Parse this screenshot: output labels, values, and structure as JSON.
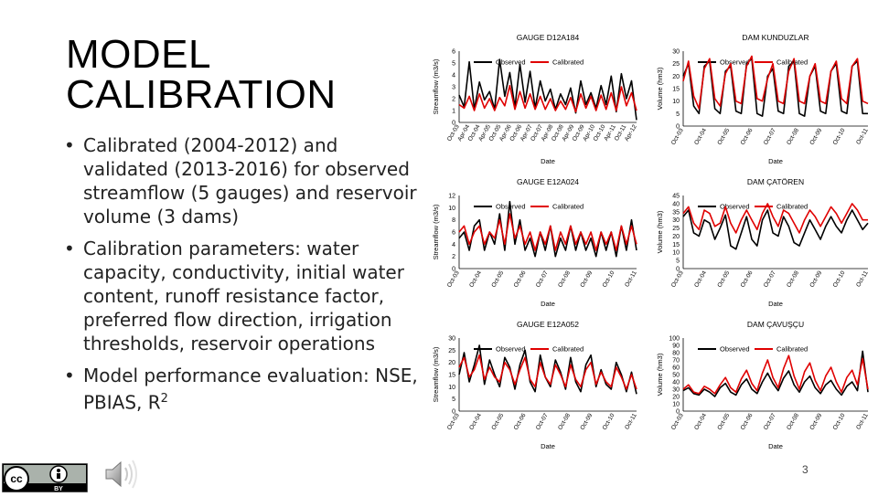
{
  "slide": {
    "title": "MODEL CALIBRATION",
    "bullets": [
      "Calibrated (2004-2012) and validated (2013-2016) for observed streamflow (5 gauges) and reservoir volume (3 dams)",
      "Calibration parameters: water capacity, conductivity, initial water content, runoff resistance factor, preferred flow direction, irrigation thresholds, reservoir operations",
      "Model performance evaluation: NSE, PBIAS, R"
    ],
    "bullet3_sup": "2",
    "page_number": "3",
    "license_text": "BY",
    "colors": {
      "observed": "#000000",
      "calibrated": "#e00000"
    }
  },
  "chart_data": [
    {
      "type": "line",
      "title": "GAUGE D12A184",
      "ylabel": "Streamflow (m3/s)",
      "xlabel": "Date",
      "ylim": [
        0,
        6
      ],
      "yticks": [
        "0",
        "1",
        "2",
        "3",
        "4",
        "5",
        "6"
      ],
      "xticks": [
        "Oct-03",
        "Apr-04",
        "Oct-04",
        "Apr-05",
        "Oct-05",
        "Apr-06",
        "Oct-06",
        "Apr-07",
        "Oct-07",
        "Apr-08",
        "Oct-08",
        "Apr-09",
        "Oct-09",
        "Apr-10",
        "Oct-10",
        "Apr-11",
        "Oct-11",
        "Apr-12"
      ],
      "series": [
        {
          "name": "Observed",
          "color": "#000000",
          "values": [
            2.3,
            1.3,
            5.1,
            1.1,
            3.4,
            1.9,
            2.6,
            1.1,
            5.3,
            2.2,
            4.2,
            1.3,
            4.9,
            1.7,
            4.3,
            1.2,
            3.5,
            1.8,
            2.8,
            1.1,
            2.4,
            1.5,
            2.9,
            0.8,
            3.5,
            1.5,
            2.5,
            1.2,
            3.1,
            1.5,
            3.9,
            0.9,
            4.1,
            2.0,
            3.5,
            0.2
          ]
        },
        {
          "name": "Calibrated",
          "color": "#e00000",
          "values": [
            1.5,
            1.2,
            2.2,
            1.0,
            2.4,
            1.2,
            2.0,
            1.0,
            2.1,
            1.4,
            3.1,
            1.1,
            2.6,
            1.2,
            2.4,
            1.1,
            2.2,
            1.1,
            2.0,
            1.0,
            1.8,
            1.1,
            2.1,
            0.9,
            2.4,
            1.2,
            2.2,
            1.0,
            2.3,
            1.1,
            2.5,
            1.0,
            3.0,
            1.4,
            2.5,
            1.0
          ]
        }
      ]
    },
    {
      "type": "line",
      "title": "DAM KUNDUZLAR",
      "ylabel": "Volume (hm3)",
      "xlabel": "Date",
      "ylim": [
        0,
        30
      ],
      "yticks": [
        "0",
        "5",
        "10",
        "15",
        "20",
        "25",
        "30"
      ],
      "xticks": [
        "Oct-03",
        "Oct-04",
        "Oct-05",
        "Oct-06",
        "Oct-07",
        "Oct-08",
        "Oct-09",
        "Oct-10",
        "Oct-11"
      ],
      "series": [
        {
          "name": "Observed",
          "color": "#000000",
          "values": [
            20,
            25,
            8,
            5,
            24,
            26,
            7,
            5,
            22,
            24,
            6,
            5,
            25,
            27,
            5,
            4,
            20,
            23,
            6,
            5,
            24,
            26,
            5,
            4,
            20,
            24,
            6,
            5,
            22,
            25,
            6,
            5,
            24,
            26,
            5,
            5
          ]
        },
        {
          "name": "Calibrated",
          "color": "#e00000",
          "values": [
            18,
            26,
            12,
            7,
            23,
            27,
            11,
            8,
            21,
            25,
            10,
            9,
            24,
            28,
            11,
            10,
            19,
            25,
            10,
            9,
            22,
            27,
            10,
            9,
            20,
            25,
            10,
            9,
            22,
            26,
            11,
            9,
            24,
            27,
            10,
            9
          ]
        }
      ]
    },
    {
      "type": "line",
      "title": "GAUGE E12A024",
      "ylabel": "Streamflow (m3/s)",
      "xlabel": "Date",
      "ylim": [
        0,
        12
      ],
      "yticks": [
        "0",
        "2",
        "4",
        "6",
        "8",
        "10",
        "12"
      ],
      "xticks": [
        "Oct-03",
        "Oct-04",
        "Oct-05",
        "Oct-06",
        "Oct-07",
        "Oct-08",
        "Oct-09",
        "Oct-10",
        "Oct-11"
      ],
      "series": [
        {
          "name": "Observed",
          "color": "#000000",
          "values": [
            5,
            6,
            3,
            7,
            8,
            3,
            6,
            4,
            9,
            3,
            11,
            4,
            8,
            3,
            5,
            2,
            6,
            3,
            7,
            2,
            5,
            3,
            7,
            3,
            6,
            3,
            5,
            2,
            6,
            3,
            6,
            2,
            7,
            3,
            8,
            3
          ]
        },
        {
          "name": "Calibrated",
          "color": "#e00000",
          "values": [
            6,
            7,
            4,
            6,
            7,
            4,
            6,
            5,
            8,
            4,
            9,
            5,
            7,
            4,
            6,
            3,
            6,
            4,
            7,
            3,
            6,
            4,
            7,
            4,
            6,
            4,
            6,
            3,
            6,
            4,
            6,
            3,
            7,
            4,
            7,
            4
          ]
        }
      ]
    },
    {
      "type": "line",
      "title": "DAM ÇATÖREN",
      "ylabel": "Volume (hm3)",
      "xlabel": "Date",
      "ylim": [
        0,
        45
      ],
      "yticks": [
        "0",
        "5",
        "10",
        "15",
        "20",
        "25",
        "30",
        "35",
        "40",
        "45"
      ],
      "xticks": [
        "Oct-03",
        "Oct-04",
        "Oct-05",
        "Oct-06",
        "Oct-07",
        "Oct-08",
        "Oct-09",
        "Oct-10",
        "Oct-11"
      ],
      "series": [
        {
          "name": "Observed",
          "color": "#000000",
          "values": [
            32,
            36,
            22,
            20,
            30,
            28,
            18,
            25,
            33,
            14,
            12,
            22,
            32,
            18,
            14,
            30,
            36,
            22,
            20,
            32,
            26,
            16,
            14,
            22,
            30,
            24,
            18,
            26,
            32,
            26,
            22,
            30,
            36,
            30,
            24,
            28
          ]
        },
        {
          "name": "Calibrated",
          "color": "#e00000",
          "values": [
            34,
            38,
            28,
            24,
            36,
            34,
            26,
            28,
            38,
            28,
            22,
            30,
            36,
            30,
            24,
            34,
            40,
            32,
            26,
            36,
            34,
            28,
            22,
            30,
            36,
            32,
            26,
            32,
            38,
            34,
            28,
            34,
            40,
            36,
            30,
            30
          ]
        }
      ]
    },
    {
      "type": "line",
      "title": "GAUGE E12A052",
      "ylabel": "Streamflow (m3/s)",
      "xlabel": "Date",
      "ylim": [
        0,
        30
      ],
      "yticks": [
        "0",
        "5",
        "10",
        "15",
        "20",
        "25",
        "30"
      ],
      "xticks": [
        "Oct-03",
        "Oct-04",
        "Oct-05",
        "Oct-06",
        "Oct-07",
        "Oct-08",
        "Oct-09",
        "Oct-10",
        "Oct-11"
      ],
      "series": [
        {
          "name": "Observed",
          "color": "#000000",
          "values": [
            15,
            24,
            12,
            19,
            27,
            11,
            21,
            15,
            10,
            22,
            18,
            9,
            19,
            25,
            12,
            8,
            23,
            14,
            10,
            21,
            16,
            9,
            22,
            12,
            8,
            19,
            23,
            10,
            17,
            11,
            9,
            20,
            15,
            8,
            16,
            7
          ]
        },
        {
          "name": "Calibrated",
          "color": "#e00000",
          "values": [
            18,
            22,
            14,
            17,
            23,
            13,
            18,
            14,
            12,
            20,
            17,
            11,
            17,
            22,
            13,
            10,
            20,
            14,
            11,
            19,
            15,
            10,
            19,
            13,
            10,
            17,
            20,
            11,
            16,
            12,
            10,
            18,
            14,
            9,
            15,
            9
          ]
        }
      ]
    },
    {
      "type": "line",
      "title": "DAM ÇAVUŞÇU",
      "ylabel": "Volume (hm3)",
      "xlabel": "Date",
      "ylim": [
        0,
        100
      ],
      "yticks": [
        "0",
        "10",
        "20",
        "30",
        "40",
        "50",
        "60",
        "70",
        "80",
        "90",
        "100"
      ],
      "xticks": [
        "Oct-03",
        "Oct-04",
        "Oct-05",
        "Oct-06",
        "Oct-07",
        "Oct-08",
        "Oct-09",
        "Oct-10",
        "Oct-11"
      ],
      "series": [
        {
          "name": "Observed",
          "color": "#000000",
          "values": [
            28,
            32,
            24,
            22,
            30,
            26,
            20,
            32,
            38,
            26,
            22,
            36,
            44,
            30,
            24,
            40,
            52,
            38,
            28,
            45,
            55,
            36,
            26,
            40,
            48,
            32,
            24,
            36,
            42,
            30,
            22,
            34,
            40,
            28,
            82,
            26
          ]
        },
        {
          "name": "Calibrated",
          "color": "#e00000",
          "values": [
            30,
            36,
            26,
            24,
            34,
            30,
            24,
            36,
            46,
            32,
            26,
            44,
            56,
            38,
            28,
            52,
            70,
            46,
            32,
            58,
            76,
            48,
            30,
            54,
            66,
            42,
            28,
            48,
            60,
            40,
            26,
            46,
            56,
            36,
            72,
            30
          ]
        }
      ]
    }
  ]
}
